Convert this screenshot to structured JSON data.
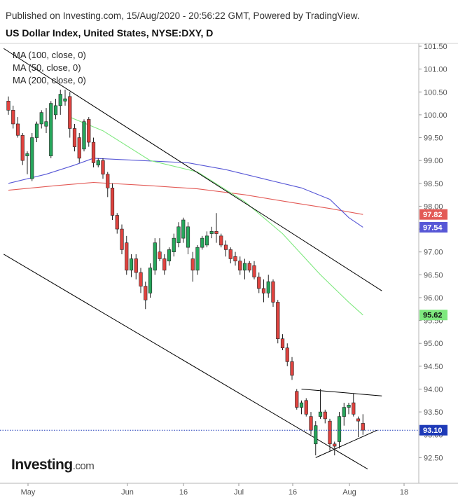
{
  "header": {
    "published": "Published on Investing.com, 15/Aug/2020 - 20:56:22 GMT, Powered by TradingView.",
    "title": "US Dollar Index, United States, NYSE:DXY, D"
  },
  "legend": {
    "items": [
      "MA (100, close, 0)",
      "MA (50, close, 0)",
      "MA (200, close, 0)"
    ]
  },
  "logo": {
    "brand": "Investing",
    "suffix": ".com"
  },
  "colors": {
    "up": "#26a65b",
    "down": "#e0433f",
    "ma50": "#7ee87e",
    "ma100": "#5757d6",
    "ma200": "#e35a56",
    "last_price": "#1e3ab8",
    "trendline": "#000000"
  },
  "chart_data": {
    "type": "candlestick",
    "x_ticks": [
      "May",
      "Jun",
      "16",
      "Jul",
      "16",
      "Aug",
      "18"
    ],
    "y_ticks": [
      "101.50",
      "101.00",
      "100.50",
      "100.00",
      "99.50",
      "99.00",
      "98.50",
      "98.00",
      "97.50",
      "97.00",
      "96.50",
      "96.00",
      "95.50",
      "95.00",
      "94.50",
      "94.00",
      "93.50",
      "93.00",
      "92.50"
    ],
    "ylim": [
      92.0,
      101.5
    ],
    "price_labels": [
      {
        "series": "MA (200, close, 0)",
        "value": "97.82"
      },
      {
        "series": "MA (100, close, 0)",
        "value": "97.54"
      },
      {
        "series": "MA (50, close, 0)",
        "value": "95.62"
      },
      {
        "series": "last",
        "value": "93.10"
      }
    ],
    "candles": [
      {
        "o": 100.3,
        "h": 100.4,
        "l": 100.0,
        "c": 100.1
      },
      {
        "o": 100.1,
        "h": 100.2,
        "l": 99.7,
        "c": 99.8
      },
      {
        "o": 99.8,
        "h": 99.95,
        "l": 99.5,
        "c": 99.55
      },
      {
        "o": 99.55,
        "h": 99.6,
        "l": 98.9,
        "c": 99.0
      },
      {
        "o": 99.1,
        "h": 99.2,
        "l": 98.7,
        "c": 99.15
      },
      {
        "o": 98.6,
        "h": 99.6,
        "l": 98.55,
        "c": 99.5
      },
      {
        "o": 99.5,
        "h": 99.85,
        "l": 99.4,
        "c": 99.8
      },
      {
        "o": 99.8,
        "h": 100.1,
        "l": 99.7,
        "c": 100.05
      },
      {
        "o": 99.75,
        "h": 100.15,
        "l": 99.6,
        "c": 99.85
      },
      {
        "o": 99.1,
        "h": 100.3,
        "l": 99.05,
        "c": 100.25
      },
      {
        "o": 100.0,
        "h": 100.35,
        "l": 99.9,
        "c": 100.2
      },
      {
        "o": 100.2,
        "h": 100.55,
        "l": 100.0,
        "c": 100.45
      },
      {
        "o": 100.3,
        "h": 100.55,
        "l": 100.2,
        "c": 100.35
      },
      {
        "o": 100.4,
        "h": 100.5,
        "l": 99.5,
        "c": 99.7
      },
      {
        "o": 99.7,
        "h": 99.8,
        "l": 99.2,
        "c": 99.3
      },
      {
        "o": 99.5,
        "h": 99.6,
        "l": 98.95,
        "c": 99.05
      },
      {
        "o": 99.25,
        "h": 99.9,
        "l": 99.2,
        "c": 99.85
      },
      {
        "o": 99.9,
        "h": 99.95,
        "l": 99.3,
        "c": 99.4
      },
      {
        "o": 99.4,
        "h": 99.5,
        "l": 98.85,
        "c": 98.95
      },
      {
        "o": 98.9,
        "h": 99.05,
        "l": 98.85,
        "c": 99.0
      },
      {
        "o": 99.0,
        "h": 99.05,
        "l": 98.6,
        "c": 98.7
      },
      {
        "o": 98.7,
        "h": 98.75,
        "l": 98.2,
        "c": 98.4
      },
      {
        "o": 98.4,
        "h": 98.5,
        "l": 97.7,
        "c": 97.8
      },
      {
        "o": 97.8,
        "h": 97.85,
        "l": 97.4,
        "c": 97.5
      },
      {
        "o": 97.5,
        "h": 97.6,
        "l": 96.95,
        "c": 97.05
      },
      {
        "o": 97.2,
        "h": 97.35,
        "l": 96.5,
        "c": 96.6
      },
      {
        "o": 96.6,
        "h": 96.95,
        "l": 96.45,
        "c": 96.85
      },
      {
        "o": 96.85,
        "h": 96.95,
        "l": 96.4,
        "c": 96.55
      },
      {
        "o": 96.55,
        "h": 96.65,
        "l": 96.1,
        "c": 96.25
      },
      {
        "o": 96.25,
        "h": 96.35,
        "l": 95.75,
        "c": 95.95
      },
      {
        "o": 96.1,
        "h": 96.75,
        "l": 96.0,
        "c": 96.65
      },
      {
        "o": 96.6,
        "h": 97.3,
        "l": 96.5,
        "c": 97.2
      },
      {
        "o": 97.0,
        "h": 97.3,
        "l": 96.8,
        "c": 96.85
      },
      {
        "o": 96.85,
        "h": 96.95,
        "l": 96.5,
        "c": 96.6
      },
      {
        "o": 96.8,
        "h": 97.1,
        "l": 96.7,
        "c": 97.05
      },
      {
        "o": 97.0,
        "h": 97.4,
        "l": 96.9,
        "c": 97.3
      },
      {
        "o": 97.2,
        "h": 97.65,
        "l": 97.1,
        "c": 97.55
      },
      {
        "o": 97.3,
        "h": 97.75,
        "l": 97.2,
        "c": 97.7
      },
      {
        "o": 97.1,
        "h": 97.65,
        "l": 96.95,
        "c": 97.55
      },
      {
        "o": 96.85,
        "h": 97.0,
        "l": 96.35,
        "c": 96.6
      },
      {
        "o": 96.6,
        "h": 97.15,
        "l": 96.5,
        "c": 97.1
      },
      {
        "o": 97.1,
        "h": 97.35,
        "l": 97.05,
        "c": 97.3
      },
      {
        "o": 97.15,
        "h": 97.45,
        "l": 97.1,
        "c": 97.35
      },
      {
        "o": 97.4,
        "h": 97.55,
        "l": 97.3,
        "c": 97.45
      },
      {
        "o": 97.45,
        "h": 97.85,
        "l": 97.2,
        "c": 97.4
      },
      {
        "o": 97.35,
        "h": 97.4,
        "l": 97.1,
        "c": 97.15
      },
      {
        "o": 97.15,
        "h": 97.25,
        "l": 96.9,
        "c": 97.05
      },
      {
        "o": 97.05,
        "h": 97.1,
        "l": 96.75,
        "c": 96.85
      },
      {
        "o": 96.9,
        "h": 97.0,
        "l": 96.7,
        "c": 96.8
      },
      {
        "o": 96.8,
        "h": 96.9,
        "l": 96.5,
        "c": 96.6
      },
      {
        "o": 96.6,
        "h": 96.85,
        "l": 96.4,
        "c": 96.75
      },
      {
        "o": 96.75,
        "h": 96.8,
        "l": 96.55,
        "c": 96.6
      },
      {
        "o": 96.7,
        "h": 96.8,
        "l": 96.4,
        "c": 96.45
      },
      {
        "o": 96.45,
        "h": 96.55,
        "l": 96.1,
        "c": 96.2
      },
      {
        "o": 96.2,
        "h": 96.4,
        "l": 95.9,
        "c": 96.1
      },
      {
        "o": 96.1,
        "h": 96.5,
        "l": 96.0,
        "c": 96.35
      },
      {
        "o": 96.35,
        "h": 96.4,
        "l": 95.8,
        "c": 95.9
      },
      {
        "o": 95.9,
        "h": 95.95,
        "l": 95.0,
        "c": 95.1
      },
      {
        "o": 95.1,
        "h": 95.2,
        "l": 94.85,
        "c": 94.9
      },
      {
        "o": 94.9,
        "h": 95.0,
        "l": 94.5,
        "c": 94.6
      },
      {
        "o": 94.6,
        "h": 94.7,
        "l": 94.2,
        "c": 94.3
      },
      {
        "o": 93.95,
        "h": 94.0,
        "l": 93.55,
        "c": 93.6
      },
      {
        "o": 93.6,
        "h": 93.75,
        "l": 93.45,
        "c": 93.7
      },
      {
        "o": 93.75,
        "h": 93.8,
        "l": 93.4,
        "c": 93.45
      },
      {
        "o": 93.4,
        "h": 93.5,
        "l": 93.0,
        "c": 93.1
      },
      {
        "o": 92.8,
        "h": 93.3,
        "l": 92.55,
        "c": 93.2
      },
      {
        "o": 93.4,
        "h": 94.0,
        "l": 93.35,
        "c": 93.5
      },
      {
        "o": 93.5,
        "h": 93.55,
        "l": 93.25,
        "c": 93.35
      },
      {
        "o": 93.3,
        "h": 93.35,
        "l": 92.65,
        "c": 92.8
      },
      {
        "o": 92.8,
        "h": 92.85,
        "l": 92.55,
        "c": 92.75
      },
      {
        "o": 92.85,
        "h": 93.5,
        "l": 92.7,
        "c": 93.4
      },
      {
        "o": 93.4,
        "h": 93.7,
        "l": 93.2,
        "c": 93.6
      },
      {
        "o": 93.6,
        "h": 93.7,
        "l": 93.45,
        "c": 93.65
      },
      {
        "o": 93.7,
        "h": 93.9,
        "l": 93.4,
        "c": 93.45
      },
      {
        "o": 93.35,
        "h": 93.4,
        "l": 92.95,
        "c": 93.3
      },
      {
        "o": 93.25,
        "h": 93.45,
        "l": 93.0,
        "c": 93.1
      }
    ],
    "ma50": [
      [
        13,
        99.95
      ],
      [
        20,
        99.65
      ],
      [
        30,
        99.0
      ],
      [
        40,
        98.75
      ],
      [
        50,
        98.1
      ],
      [
        58,
        97.4
      ],
      [
        66,
        96.5
      ],
      [
        72,
        95.9
      ],
      [
        75,
        95.62
      ]
    ],
    "ma100": [
      [
        0,
        98.5
      ],
      [
        8,
        98.7
      ],
      [
        14,
        98.9
      ],
      [
        18,
        99.05
      ],
      [
        28,
        99.0
      ],
      [
        38,
        98.95
      ],
      [
        46,
        98.8
      ],
      [
        54,
        98.6
      ],
      [
        62,
        98.4
      ],
      [
        68,
        98.15
      ],
      [
        72,
        97.75
      ],
      [
        75,
        97.54
      ]
    ],
    "ma200": [
      [
        0,
        98.35
      ],
      [
        10,
        98.45
      ],
      [
        18,
        98.52
      ],
      [
        30,
        98.45
      ],
      [
        40,
        98.38
      ],
      [
        50,
        98.25
      ],
      [
        60,
        98.08
      ],
      [
        68,
        97.95
      ],
      [
        75,
        97.82
      ]
    ],
    "trendlines": [
      [
        [
          -1,
          101.45
        ],
        [
          79,
          96.15
        ]
      ],
      [
        [
          -1,
          96.95
        ],
        [
          76,
          92.25
        ]
      ],
      [
        [
          62,
          94.0
        ],
        [
          79,
          93.85
        ]
      ],
      [
        [
          65,
          92.5
        ],
        [
          78,
          93.1
        ]
      ]
    ]
  }
}
